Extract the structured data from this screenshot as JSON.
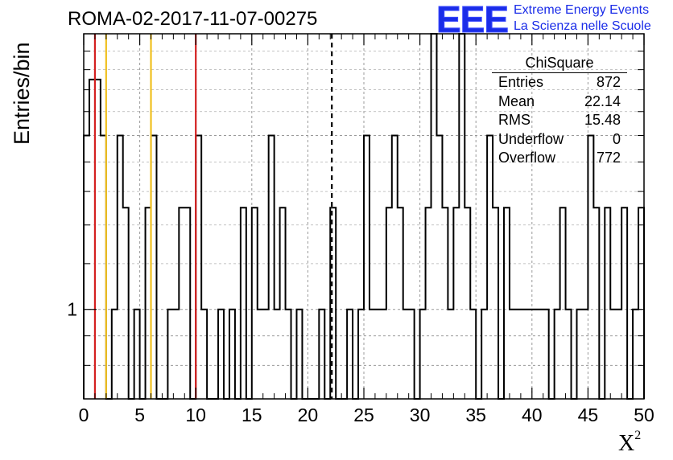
{
  "title": "ROMA-02-2017-11-07-00275",
  "logo": {
    "mark": "EEE",
    "line1": "Extreme Energy Events",
    "line2": "La Scienza nelle Scuole",
    "color": "#1a2ce8"
  },
  "stats_box": {
    "name": "ChiSquare",
    "rows": [
      {
        "label": "Entries",
        "value": "872"
      },
      {
        "label": "Mean",
        "value": "22.14"
      },
      {
        "label": "RMS",
        "value": "15.48"
      },
      {
        "label": "Underflow",
        "value": "0"
      },
      {
        "label": "Overflow",
        "value": "772"
      }
    ]
  },
  "chart_data": {
    "type": "histogram",
    "ylabel": "Entries/bin",
    "xlabel": "X",
    "xlabel_superscript": "2",
    "xlim": [
      0,
      50
    ],
    "ylog": true,
    "ylim": [
      0.7,
      3.0
    ],
    "xticks": [
      0,
      5,
      10,
      15,
      20,
      25,
      30,
      35,
      40,
      45,
      50
    ],
    "yticks": [
      {
        "value": 1,
        "label": "1"
      }
    ],
    "grid": true,
    "bin_width": 0.5,
    "bins": [
      [
        0,
        2
      ],
      [
        0.5,
        2.5
      ],
      [
        1,
        2.5
      ],
      [
        1.5,
        2
      ],
      [
        2.5,
        1
      ],
      [
        3,
        2
      ],
      [
        3.5,
        1.5
      ],
      [
        4.5,
        1
      ],
      [
        5.5,
        1.5
      ],
      [
        6,
        2
      ],
      [
        7.5,
        1
      ],
      [
        8,
        1
      ],
      [
        8.5,
        1.5
      ],
      [
        9,
        1.5
      ],
      [
        10,
        2
      ],
      [
        10.5,
        1
      ],
      [
        12,
        1
      ],
      [
        13,
        1
      ],
      [
        14,
        1.5
      ],
      [
        15,
        1.5
      ],
      [
        15.5,
        1
      ],
      [
        16,
        1
      ],
      [
        16.5,
        2
      ],
      [
        17,
        1
      ],
      [
        17.5,
        1.5
      ],
      [
        18,
        1
      ],
      [
        19,
        1
      ],
      [
        21,
        1
      ],
      [
        22,
        1.5
      ],
      [
        23.5,
        1
      ],
      [
        24.5,
        1
      ],
      [
        25,
        2
      ],
      [
        25.5,
        1
      ],
      [
        26,
        1
      ],
      [
        26.5,
        1
      ],
      [
        27,
        1.5
      ],
      [
        27.5,
        2
      ],
      [
        28,
        1.5
      ],
      [
        28.5,
        1
      ],
      [
        29,
        1
      ],
      [
        30,
        1
      ],
      [
        30.5,
        1.5
      ],
      [
        31,
        3
      ],
      [
        31.5,
        2
      ],
      [
        32,
        1.5
      ],
      [
        32.5,
        1
      ],
      [
        33,
        1.5
      ],
      [
        33.5,
        3
      ],
      [
        34,
        1.5
      ],
      [
        34.5,
        1
      ],
      [
        35.5,
        1
      ],
      [
        36,
        2
      ],
      [
        36.5,
        1.5
      ],
      [
        37.5,
        1.5
      ],
      [
        38,
        1
      ],
      [
        38.5,
        1
      ],
      [
        39,
        1
      ],
      [
        39.5,
        1
      ],
      [
        40,
        1
      ],
      [
        40.5,
        1
      ],
      [
        41,
        1
      ],
      [
        42,
        1
      ],
      [
        42.5,
        1.5
      ],
      [
        43,
        1
      ],
      [
        44,
        1
      ],
      [
        44.5,
        1
      ],
      [
        45,
        2
      ],
      [
        45.5,
        1.5
      ],
      [
        46.5,
        1.5
      ],
      [
        47,
        1
      ],
      [
        47.5,
        1
      ],
      [
        48,
        1.5
      ],
      [
        49,
        1
      ],
      [
        49.5,
        1.5
      ]
    ],
    "vertical_markers": [
      {
        "x": 1,
        "color": "#d32020",
        "style": "solid"
      },
      {
        "x": 2,
        "color": "#f0c020",
        "style": "solid"
      },
      {
        "x": 6,
        "color": "#f0c020",
        "style": "solid"
      },
      {
        "x": 10,
        "color": "#d32020",
        "style": "solid"
      },
      {
        "x": 22.14,
        "color": "#000000",
        "style": "dashed"
      }
    ]
  }
}
